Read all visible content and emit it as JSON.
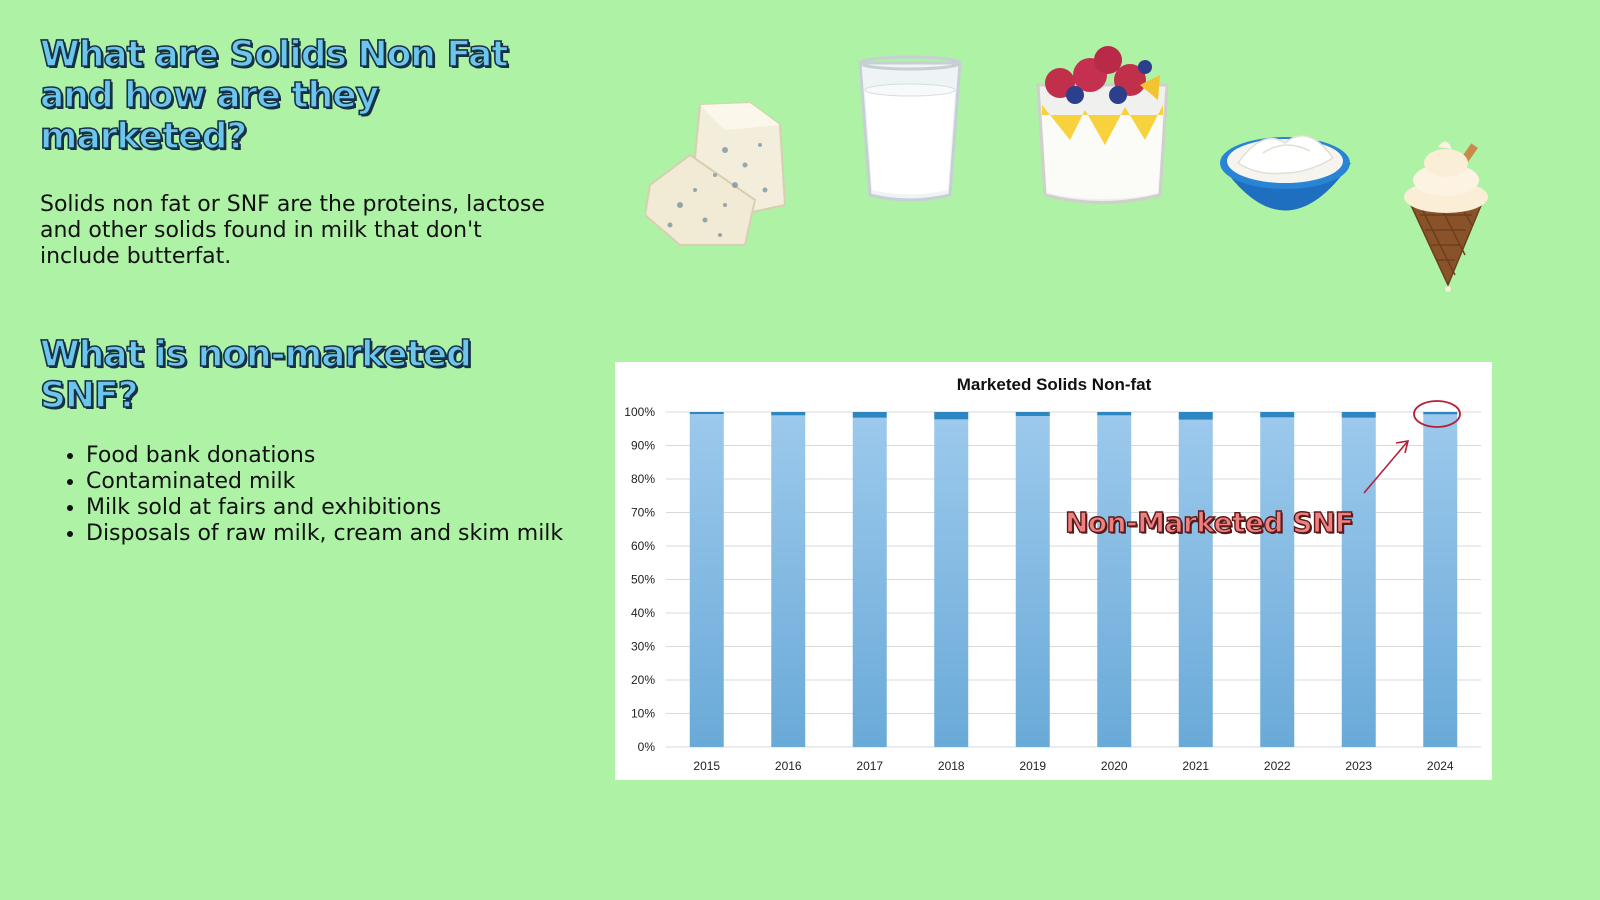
{
  "heading_1": "What are Solids Non Fat and how are they marketed?",
  "intro": "Solids non fat or SNF are the proteins, lactose and other solids found in milk that don't include butterfat.",
  "heading_2": "What is non-marketed SNF?",
  "bullets": [
    "Food bank donations",
    "Contaminated milk",
    "Milk sold at fairs and exhibitions",
    "Disposals of raw milk, cream and skim milk"
  ],
  "food_images": [
    "blue-cheese",
    "glass-of-milk",
    "yogurt-parfait-with-berries",
    "bowl-of-yogurt",
    "ice-cream-cone"
  ],
  "callout": {
    "text": "Non-Marketed SNF",
    "color": "#f08080"
  },
  "colors": {
    "background": "#aef2a5",
    "heading_fill": "#6cc6ec",
    "marketed": "#85bde6",
    "non_marketed": "#2e86c1"
  },
  "chart_data": {
    "type": "bar",
    "stacked": true,
    "title": "Marketed Solids Non-fat",
    "categories": [
      "2015",
      "2016",
      "2017",
      "2018",
      "2019",
      "2020",
      "2021",
      "2022",
      "2023",
      "2024"
    ],
    "series": [
      {
        "values": [
          99.4,
          99.0,
          98.3,
          97.8,
          98.8,
          99.0,
          97.7,
          98.4,
          98.3,
          99.3
        ]
      },
      {
        "values": [
          0.6,
          1.0,
          1.7,
          2.2,
          1.2,
          1.0,
          2.3,
          1.6,
          1.7,
          0.7
        ]
      }
    ],
    "ylim": [
      0,
      100
    ],
    "yticks": [
      "0%",
      "10%",
      "20%",
      "30%",
      "40%",
      "50%",
      "60%",
      "70%",
      "80%",
      "90%",
      "100%"
    ],
    "grid": true,
    "xlabel": "",
    "ylabel": ""
  }
}
